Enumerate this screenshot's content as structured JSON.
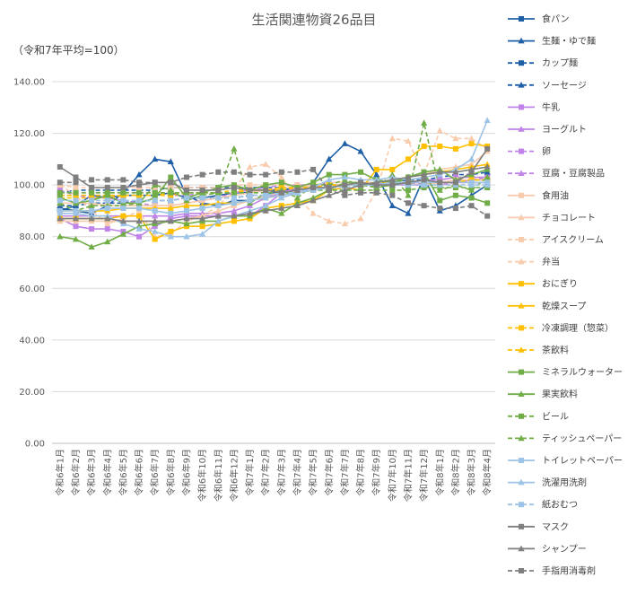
{
  "chart_data": {
    "type": "line",
    "title": "生活関連物資26品目",
    "subtitle": "（令和7年平均=100）",
    "xlabel": "",
    "ylabel": "",
    "ylim": [
      0,
      140
    ],
    "yticks": [
      "0.00",
      "20.00",
      "40.00",
      "60.00",
      "80.00",
      "100.00",
      "120.00",
      "140.00"
    ],
    "grid": true,
    "legend_position": "right",
    "categories": [
      "令和6年1月",
      "令和6年2月",
      "令和6年3月",
      "令和6年4月",
      "令和6年5月",
      "令和6年6月",
      "令和6年7月",
      "令和6年8月",
      "令和6年9月",
      "令和6年10月",
      "令和6年11月",
      "令和6年12月",
      "令和7年1月",
      "令和7年2月",
      "令和7年3月",
      "令和7年4月",
      "令和7年5月",
      "令和7年6月",
      "令和7年7月",
      "令和7年8月",
      "令和7年9月",
      "令和7年10月",
      "令和7年11月",
      "令和7年12月",
      "令和8年1月",
      "令和8年2月",
      "令和8年3月",
      "令和8年4月"
    ],
    "series": [
      {
        "name": "食パン",
        "color": "#1f5fa8",
        "dash": "solid",
        "marker": "square",
        "values": [
          90,
          92,
          96,
          95,
          96,
          96,
          96,
          97,
          95,
          95,
          96,
          97,
          97,
          98,
          98,
          99,
          100,
          100,
          100,
          100,
          100,
          100,
          101,
          101,
          101,
          101,
          102,
          102
        ]
      },
      {
        "name": "生麺・ゆで麺",
        "color": "#1f5fa8",
        "dash": "solid",
        "marker": "triangle",
        "values": [
          91,
          90,
          89,
          92,
          97,
          104,
          110,
          109,
          96,
          93,
          92,
          94,
          94,
          96,
          98,
          98,
          101,
          110,
          116,
          113,
          104,
          92,
          89,
          103,
          90,
          92,
          96,
          100
        ]
      },
      {
        "name": "カップ麺",
        "color": "#1f5fa8",
        "dash": "dash",
        "marker": "square",
        "values": [
          97,
          98,
          98,
          98,
          98,
          98,
          98,
          99,
          99,
          99,
          99,
          99,
          99,
          99,
          99,
          99,
          100,
          100,
          100,
          100,
          100,
          100,
          101,
          101,
          101,
          101,
          101,
          101
        ]
      },
      {
        "name": "ソーセージ",
        "color": "#1f5fa8",
        "dash": "dash",
        "marker": "triangle",
        "values": [
          92,
          92,
          93,
          93,
          93,
          94,
          94,
          94,
          95,
          95,
          95,
          95,
          96,
          96,
          97,
          98,
          99,
          100,
          100,
          100,
          100,
          101,
          102,
          102,
          103,
          104,
          104,
          105
        ]
      },
      {
        "name": "牛乳",
        "color": "#c084e8",
        "dash": "solid",
        "marker": "square",
        "values": [
          87,
          84,
          83,
          83,
          82,
          80,
          84,
          87,
          88,
          88,
          88,
          88,
          88,
          92,
          97,
          98,
          99,
          99,
          100,
          100,
          100,
          101,
          101,
          102,
          102,
          103,
          103,
          103
        ]
      },
      {
        "name": "ヨーグルト",
        "color": "#c084e8",
        "dash": "solid",
        "marker": "triangle",
        "values": [
          88,
          88,
          88,
          88,
          88,
          88,
          88,
          88,
          89,
          89,
          89,
          90,
          92,
          95,
          97,
          99,
          100,
          100,
          100,
          100,
          100,
          101,
          101,
          101,
          101,
          101,
          101,
          101
        ]
      },
      {
        "name": "卵",
        "color": "#c084e8",
        "dash": "dash",
        "marker": "square",
        "values": [
          98,
          96,
          95,
          95,
          94,
          93,
          92,
          92,
          93,
          94,
          95,
          97,
          98,
          99,
          100,
          100,
          100,
          100,
          100,
          100,
          100,
          100,
          100,
          100,
          100,
          101,
          102,
          103
        ]
      },
      {
        "name": "豆腐・豆腐製品",
        "color": "#c084e8",
        "dash": "dash",
        "marker": "triangle",
        "values": [
          96,
          96,
          96,
          96,
          96,
          96,
          96,
          96,
          96,
          97,
          97,
          97,
          97,
          98,
          98,
          99,
          99,
          100,
          100,
          100,
          100,
          100,
          100,
          101,
          101,
          101,
          101,
          101
        ]
      },
      {
        "name": "食用油",
        "color": "#f8cbad",
        "dash": "solid",
        "marker": "square",
        "values": [
          93,
          93,
          93,
          92,
          92,
          92,
          92,
          92,
          93,
          94,
          95,
          96,
          97,
          98,
          99,
          99,
          100,
          100,
          100,
          100,
          101,
          101,
          101,
          101,
          101,
          102,
          102,
          102
        ]
      },
      {
        "name": "チョコレート",
        "color": "#f8cbad",
        "dash": "solid",
        "marker": "triangle",
        "values": [
          86,
          86,
          86,
          86,
          86,
          86,
          86,
          86,
          87,
          88,
          90,
          92,
          94,
          96,
          97,
          98,
          100,
          101,
          101,
          101,
          101,
          102,
          103,
          104,
          106,
          107,
          108,
          113
        ]
      },
      {
        "name": "アイスクリーム",
        "color": "#f8cbad",
        "dash": "dash",
        "marker": "square",
        "values": [
          100,
          99,
          99,
          99,
          99,
          99,
          99,
          99,
          99,
          99,
          99,
          100,
          100,
          100,
          100,
          100,
          100,
          100,
          100,
          100,
          100,
          100,
          100,
          100,
          101,
          101,
          101,
          101
        ]
      },
      {
        "name": "弁当",
        "color": "#f8cbad",
        "dash": "dash",
        "marker": "triangle",
        "values": [
          100,
          96,
          90,
          85,
          87,
          90,
          80,
          81,
          86,
          88,
          92,
          98,
          107,
          108,
          103,
          95,
          89,
          86,
          85,
          87,
          98,
          118,
          117,
          104,
          121,
          118,
          118,
          114
        ]
      },
      {
        "name": "おにぎり",
        "color": "#ffc000",
        "dash": "solid",
        "marker": "square",
        "values": [
          87,
          87,
          87,
          87,
          88,
          88,
          79,
          82,
          84,
          84,
          85,
          86,
          87,
          91,
          92,
          93,
          94,
          98,
          99,
          98,
          106,
          106,
          110,
          115,
          115,
          114,
          116,
          115
        ]
      },
      {
        "name": "乾燥スープ",
        "color": "#ffc000",
        "dash": "solid",
        "marker": "triangle",
        "values": [
          90,
          90,
          90,
          90,
          91,
          91,
          91,
          91,
          92,
          92,
          93,
          93,
          94,
          95,
          96,
          97,
          98,
          99,
          100,
          100,
          101,
          102,
          103,
          104,
          105,
          106,
          107,
          108
        ]
      },
      {
        "name": "冷凍調理（惣菜）",
        "color": "#ffc000",
        "dash": "dash",
        "marker": "square",
        "values": [
          95,
          95,
          95,
          95,
          96,
          96,
          96,
          96,
          97,
          97,
          97,
          98,
          98,
          98,
          99,
          99,
          99,
          100,
          100,
          100,
          100,
          100,
          101,
          101,
          101,
          101,
          102,
          102
        ]
      },
      {
        "name": "茶飲料",
        "color": "#ffc000",
        "dash": "dash",
        "marker": "triangle",
        "values": [
          96,
          96,
          96,
          96,
          96,
          96,
          96,
          97,
          97,
          97,
          97,
          97,
          98,
          98,
          98,
          99,
          99,
          100,
          100,
          100,
          101,
          101,
          101,
          101,
          101,
          101,
          102,
          102
        ]
      },
      {
        "name": "ミネラルウォーター",
        "color": "#70ad47",
        "dash": "solid",
        "marker": "square",
        "values": [
          95,
          93,
          94,
          96,
          93,
          93,
          95,
          103,
          95,
          97,
          99,
          100,
          98,
          100,
          101,
          99,
          101,
          104,
          104,
          105,
          102,
          101,
          103,
          105,
          94,
          96,
          95,
          93
        ]
      },
      {
        "name": "果実飲料",
        "color": "#70ad47",
        "dash": "solid",
        "marker": "triangle",
        "values": [
          80,
          79,
          76,
          78,
          81,
          84,
          85,
          86,
          85,
          86,
          86,
          88,
          88,
          91,
          89,
          93,
          95,
          98,
          101,
          101,
          99,
          100,
          103,
          105,
          106,
          102,
          104,
          106
        ]
      },
      {
        "name": "ビール",
        "color": "#70ad47",
        "dash": "dash",
        "marker": "square",
        "values": [
          97,
          97,
          97,
          97,
          97,
          97,
          97,
          97,
          97,
          97,
          97,
          97,
          97,
          97,
          97,
          97,
          98,
          98,
          98,
          98,
          98,
          98,
          98,
          99,
          99,
          99,
          99,
          99
        ]
      },
      {
        "name": "ティッシュペーパー",
        "color": "#70ad47",
        "dash": "dash",
        "marker": "triangle",
        "values": [
          93,
          90,
          92,
          92,
          92,
          93,
          100,
          98,
          94,
          96,
          97,
          114,
          93,
          97,
          98,
          95,
          100,
          100,
          102,
          100,
          99,
          104,
          96,
          124,
          98,
          100,
          98,
          103
        ]
      },
      {
        "name": "トイレットペーパー",
        "color": "#9dc3e6",
        "dash": "solid",
        "marker": "square",
        "values": [
          90,
          90,
          90,
          91,
          91,
          91,
          90,
          89,
          90,
          91,
          92,
          93,
          94,
          95,
          96,
          97,
          98,
          99,
          100,
          100,
          100,
          101,
          101,
          101,
          101,
          101,
          101,
          101
        ]
      },
      {
        "name": "洗濯用洗剤",
        "color": "#9dc3e6",
        "dash": "solid",
        "marker": "triangle",
        "values": [
          89,
          89,
          88,
          88,
          85,
          83,
          82,
          80,
          80,
          81,
          86,
          88,
          90,
          92,
          95,
          97,
          99,
          102,
          103,
          102,
          102,
          103,
          102,
          103,
          104,
          106,
          110,
          125
        ]
      },
      {
        "name": "紙おむつ",
        "color": "#9dc3e6",
        "dash": "dash",
        "marker": "square",
        "values": [
          94,
          94,
          94,
          94,
          94,
          94,
          94,
          94,
          95,
          95,
          95,
          95,
          96,
          96,
          97,
          97,
          98,
          99,
          99,
          100,
          100,
          100,
          100,
          100,
          100,
          100,
          100,
          100
        ]
      },
      {
        "name": "マスク",
        "color": "#7f7f7f",
        "dash": "solid",
        "marker": "square",
        "values": [
          107,
          103,
          99,
          99,
          99,
          100,
          101,
          101,
          98,
          98,
          98,
          99,
          98,
          98,
          97,
          98,
          99,
          99,
          100,
          101,
          100,
          100,
          101,
          102,
          101,
          101,
          105,
          114
        ]
      },
      {
        "name": "シャンプー",
        "color": "#7f7f7f",
        "dash": "solid",
        "marker": "triangle",
        "values": [
          87,
          87,
          87,
          87,
          86,
          86,
          86,
          86,
          87,
          87,
          88,
          88,
          89,
          90,
          91,
          92,
          94,
          96,
          98,
          100,
          101,
          102,
          103,
          104,
          105,
          105,
          106,
          107
        ]
      },
      {
        "name": "手指用消毒剤",
        "color": "#7f7f7f",
        "dash": "dash",
        "marker": "square",
        "values": [
          101,
          101,
          102,
          102,
          102,
          101,
          101,
          101,
          103,
          104,
          105,
          105,
          104,
          104,
          105,
          105,
          106,
          98,
          96,
          97,
          97,
          96,
          93,
          92,
          91,
          91,
          92,
          88
        ]
      }
    ]
  }
}
